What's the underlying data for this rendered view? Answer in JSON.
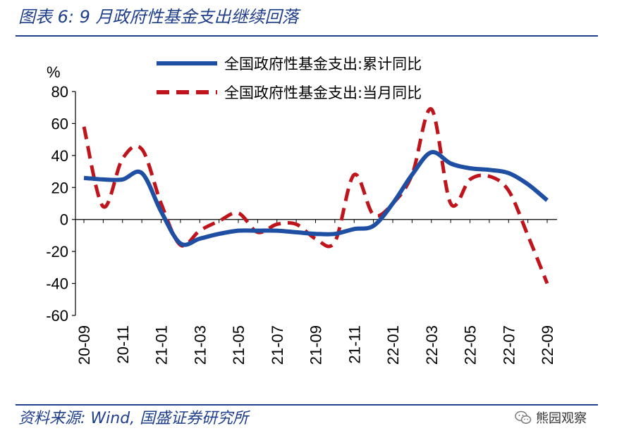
{
  "header": {
    "title": "图表 6:  9 月政府性基金支出继续回落"
  },
  "footer": {
    "source": "资料来源:  Wind,  国盛证券研究所",
    "watermark": "熊园观察"
  },
  "colors": {
    "accent": "#1f3f8a",
    "series_cumulative": "#1f4fa3",
    "series_monthly": "#c0141c"
  },
  "chart_data": {
    "type": "line",
    "title": "",
    "xlabel": "",
    "ylabel": "%",
    "ylim": [
      -60,
      80
    ],
    "yticks": [
      80,
      60,
      40,
      20,
      0,
      -20,
      -40,
      -60
    ],
    "x": [
      "20-09",
      "20-10",
      "20-11",
      "20-12",
      "21-01",
      "21-02",
      "21-03",
      "21-04",
      "21-05",
      "21-06",
      "21-07",
      "21-08",
      "21-09",
      "21-10",
      "21-11",
      "21-12",
      "22-01",
      "22-02",
      "22-03",
      "22-04",
      "22-05",
      "22-06",
      "22-07",
      "22-08",
      "22-09"
    ],
    "xtick_labels": [
      "20-09",
      "20-11",
      "21-01",
      "21-03",
      "21-05",
      "21-07",
      "21-09",
      "21-11",
      "22-01",
      "22-03",
      "22-05",
      "22-07",
      "22-09"
    ],
    "legend_position": "top",
    "grid": false,
    "series": [
      {
        "name": "全国政府性基金支出:累计同比",
        "style": "solid",
        "values": [
          26,
          25,
          25,
          29,
          5,
          -15,
          -12,
          -9,
          -7,
          -7,
          -7,
          -8,
          -9,
          -9,
          -6,
          -4,
          10,
          28,
          42,
          35,
          32,
          31,
          29,
          22,
          12
        ]
      },
      {
        "name": "全国政府性基金支出:当月同比",
        "style": "dashed",
        "values": [
          58,
          8,
          38,
          44,
          10,
          -16,
          -7,
          -1,
          4,
          -8,
          -3,
          -3,
          -12,
          -14,
          28,
          3,
          10,
          28,
          69,
          10,
          25,
          27,
          18,
          -10,
          -40
        ]
      }
    ]
  }
}
